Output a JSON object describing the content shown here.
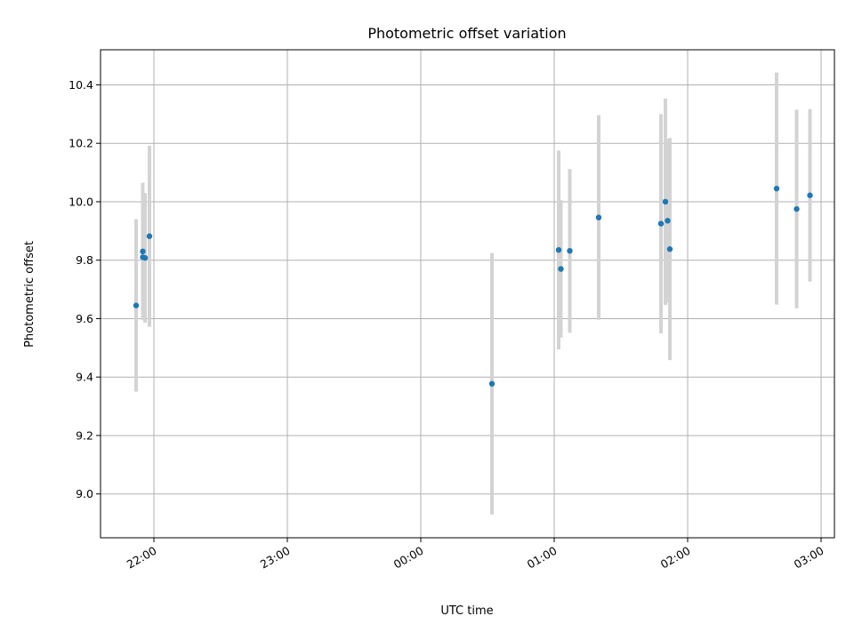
{
  "chart_data": {
    "type": "scatter",
    "title": "Photometric offset variation",
    "xlabel": "UTC time",
    "ylabel": "Photometric offset",
    "x_axis": {
      "kind": "time",
      "range": [
        "21:36",
        "03:06"
      ],
      "ticks": [
        {
          "time": "22:00",
          "label": "22:00"
        },
        {
          "time": "23:00",
          "label": "23:00"
        },
        {
          "time": "00:00",
          "label": "00:00"
        },
        {
          "time": "01:00",
          "label": "01:00"
        },
        {
          "time": "02:00",
          "label": "02:00"
        },
        {
          "time": "03:00",
          "label": "03:00"
        }
      ]
    },
    "y_axis": {
      "range": [
        8.85,
        10.52
      ],
      "ticks": [
        9.0,
        9.2,
        9.4,
        9.6,
        9.8,
        10.0,
        10.2,
        10.4
      ]
    },
    "grid": true,
    "marker_color": "#1f77b4",
    "errorbar_color": "#d3d3d3",
    "points": [
      {
        "time": "21:52",
        "value": 9.645,
        "error": 0.295
      },
      {
        "time": "21:55",
        "value": 9.83,
        "error": 0.235
      },
      {
        "time": "21:55",
        "value": 9.81,
        "error": 0.21
      },
      {
        "time": "21:56",
        "value": 9.808,
        "error": 0.222
      },
      {
        "time": "21:58",
        "value": 9.882,
        "error": 0.31
      },
      {
        "time": "00:32",
        "value": 9.377,
        "error": 0.447
      },
      {
        "time": "01:02",
        "value": 9.835,
        "error": 0.34
      },
      {
        "time": "01:03",
        "value": 9.77,
        "error": 0.235
      },
      {
        "time": "01:07",
        "value": 9.832,
        "error": 0.28
      },
      {
        "time": "01:20",
        "value": 9.946,
        "error": 0.35
      },
      {
        "time": "01:48",
        "value": 9.925,
        "error": 0.375
      },
      {
        "time": "01:50",
        "value": 10.0,
        "error": 0.353
      },
      {
        "time": "01:51",
        "value": 9.935,
        "error": 0.28
      },
      {
        "time": "01:52",
        "value": 9.838,
        "error": 0.38
      },
      {
        "time": "02:40",
        "value": 10.045,
        "error": 0.397
      },
      {
        "time": "02:49",
        "value": 9.975,
        "error": 0.34
      },
      {
        "time": "02:55",
        "value": 10.022,
        "error": 0.295
      }
    ]
  }
}
